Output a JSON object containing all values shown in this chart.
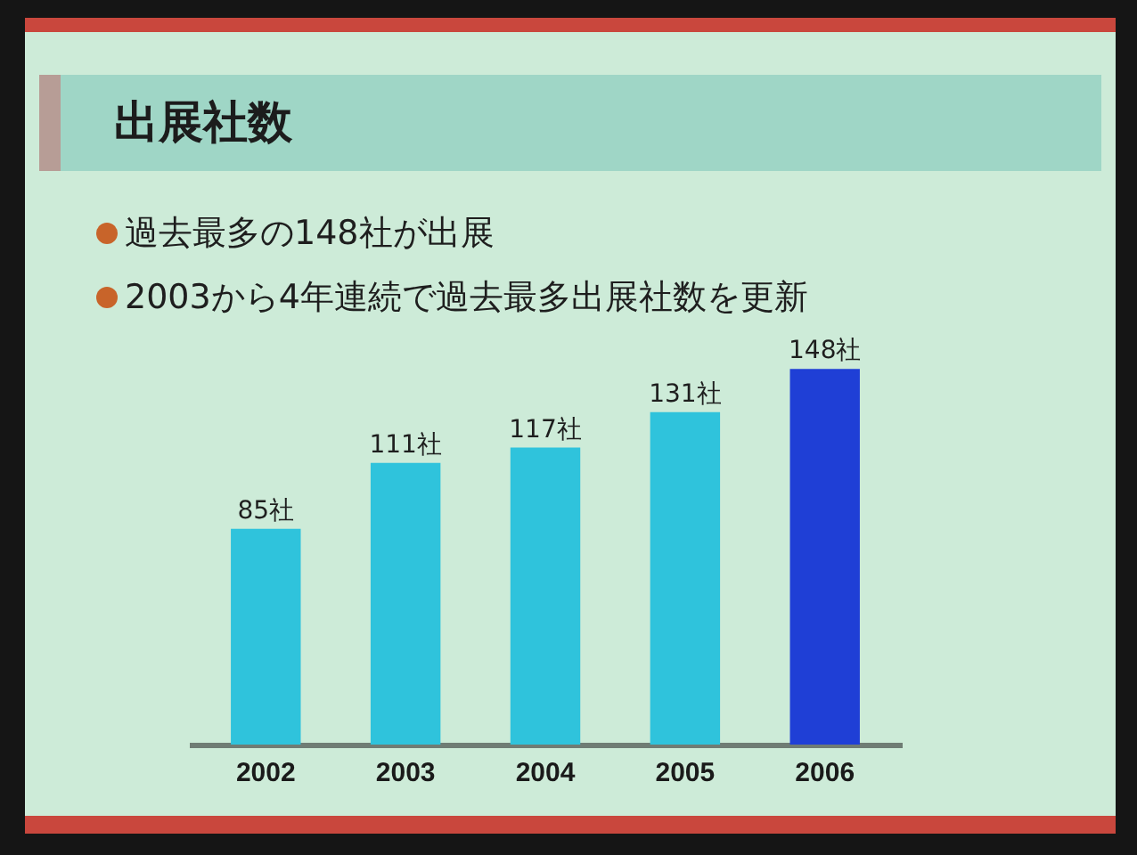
{
  "chart_data": {
    "type": "bar",
    "title": "出展社数",
    "annotations": [
      "過去最多の148社が出展",
      "2003から4年連続で過去最多出展社数を更新"
    ],
    "categories": [
      "2002",
      "2003",
      "2004",
      "2005",
      "2006"
    ],
    "values": [
      85,
      111,
      117,
      131,
      148
    ],
    "colors": [
      "#2fc3dc",
      "#2fc3dc",
      "#2fc3dc",
      "#2fc3dc",
      "#1f3fd6"
    ],
    "value_labels": [
      "85社",
      "111社",
      "117社",
      "131社",
      "148社"
    ],
    "tick_labels": "x"
  }
}
